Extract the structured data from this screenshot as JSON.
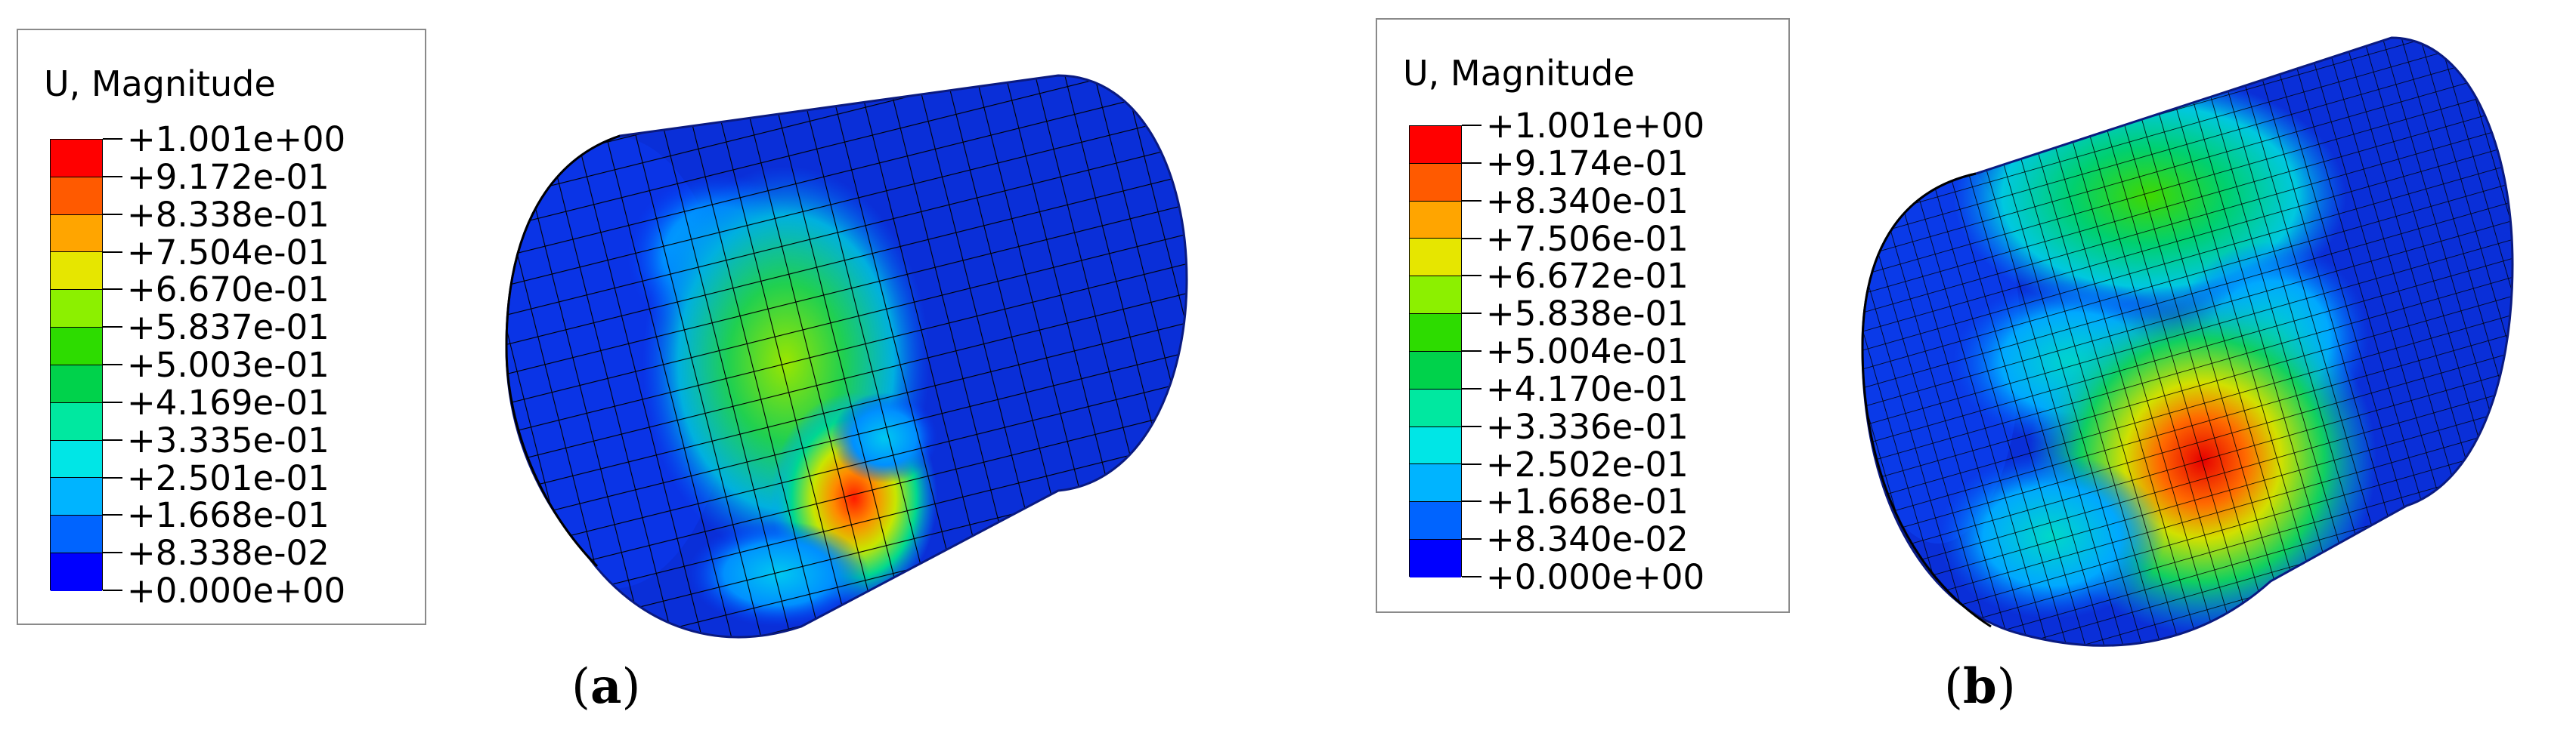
{
  "panels": [
    {
      "caption_open": "(",
      "caption_letter": "a",
      "caption_close": ")",
      "legend": {
        "title": "U, Magnitude",
        "labels": [
          "+1.001e+00",
          "+9.172e-01",
          "+8.338e-01",
          "+7.504e-01",
          "+6.670e-01",
          "+5.837e-01",
          "+5.003e-01",
          "+4.169e-01",
          "+3.335e-01",
          "+2.501e-01",
          "+1.668e-01",
          "+8.338e-02",
          "+0.000e+00"
        ]
      }
    },
    {
      "caption_open": "(",
      "caption_letter": "b",
      "caption_close": ")",
      "legend": {
        "title": "U, Magnitude",
        "labels": [
          "+1.001e+00",
          "+9.174e-01",
          "+8.340e-01",
          "+7.506e-01",
          "+6.672e-01",
          "+5.838e-01",
          "+5.004e-01",
          "+4.170e-01",
          "+3.336e-01",
          "+2.502e-01",
          "+1.668e-01",
          "+8.340e-02",
          "+0.000e+00"
        ]
      }
    }
  ],
  "colorscale": [
    "#ff0000",
    "#ff5a00",
    "#ffa500",
    "#e6e600",
    "#8cf000",
    "#2ddc00",
    "#00d24b",
    "#00e8a0",
    "#00e6e6",
    "#00b4ff",
    "#0064ff",
    "#0000ff"
  ]
}
